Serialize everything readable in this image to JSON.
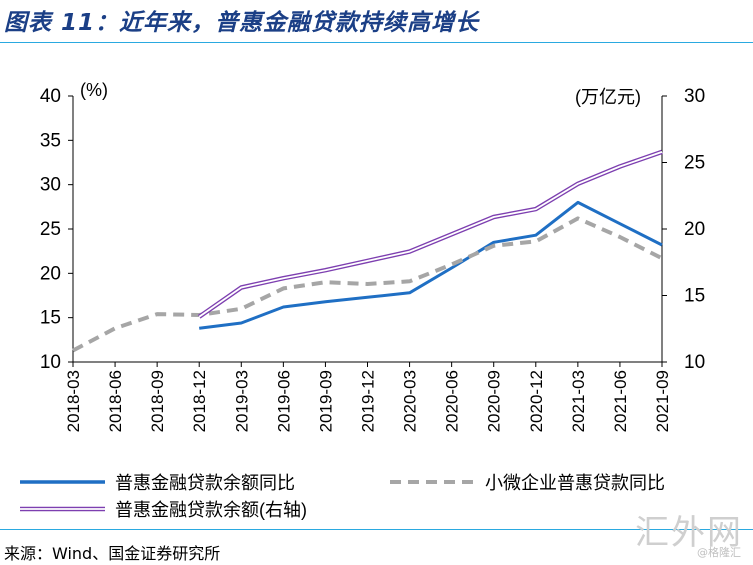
{
  "header": {
    "title": "图表 11：近年来，普惠金融贷款持续高增长"
  },
  "footer": {
    "source": "来源：Wind、国金证券研究所"
  },
  "watermark": {
    "text": "汇外网",
    "sub": "@格隆汇"
  },
  "colors": {
    "series1": "#1f6fc4",
    "series2": "#a6a6a6",
    "series3_outline": "#7d3fb0",
    "series3_fill": "#ffffff",
    "rule": "#2aa9e0"
  },
  "chart_data": {
    "type": "line",
    "left_axis_unit": "(%)",
    "right_axis_unit": "(万亿元)",
    "left_ylim": [
      10,
      40
    ],
    "right_ylim": [
      10,
      30
    ],
    "left_ticks": [
      10,
      15,
      20,
      25,
      30,
      35,
      40
    ],
    "right_ticks": [
      10,
      15,
      20,
      25,
      30
    ],
    "categories": [
      "2018-03",
      "2018-06",
      "2018-09",
      "2018-12",
      "2019-03",
      "2019-06",
      "2019-09",
      "2019-12",
      "2020-03",
      "2020-06",
      "2020-09",
      "2020-12",
      "2021-03",
      "2021-06",
      "2021-09"
    ],
    "series": [
      {
        "name": "普惠金融贷款余额同比",
        "axis": "left",
        "style": "solid",
        "values": [
          null,
          null,
          null,
          13.8,
          14.4,
          16.2,
          16.8,
          17.3,
          17.8,
          20.6,
          23.5,
          24.3,
          28.0,
          25.6,
          23.2
        ]
      },
      {
        "name": "小微企业普惠贷款同比",
        "axis": "left",
        "style": "dashed",
        "values": [
          11.3,
          13.8,
          15.4,
          15.3,
          16.0,
          18.3,
          19.0,
          18.8,
          19.1,
          21.0,
          23.1,
          23.6,
          26.2,
          24.1,
          21.7
        ]
      },
      {
        "name": "普惠金融贷款余额(右轴)",
        "axis": "right",
        "style": "double",
        "values": [
          null,
          null,
          null,
          13.4,
          15.6,
          16.3,
          16.9,
          17.6,
          18.3,
          19.6,
          20.9,
          21.5,
          23.4,
          24.7,
          25.8
        ]
      }
    ]
  }
}
